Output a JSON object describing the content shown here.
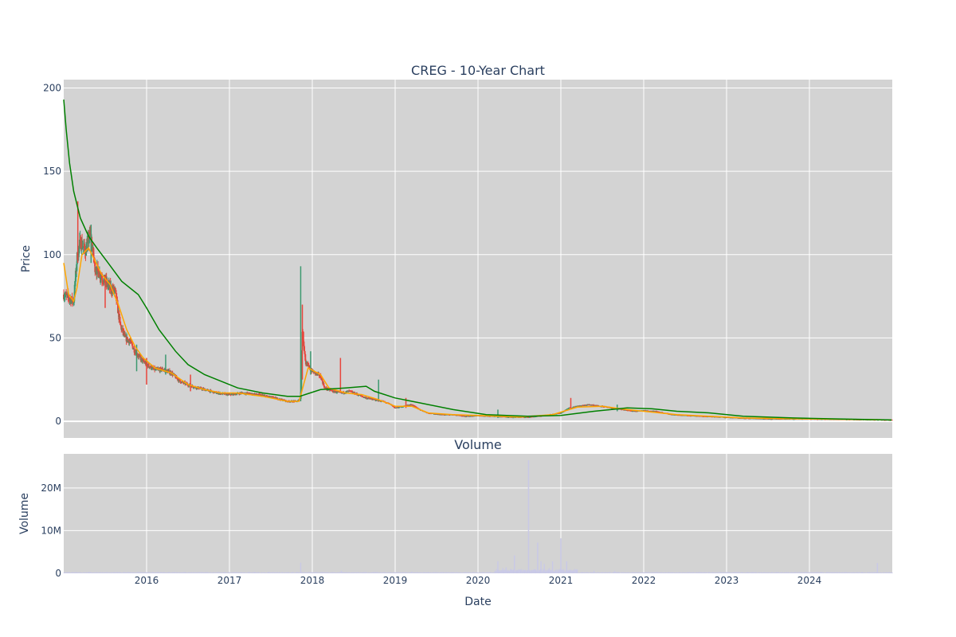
{
  "chart_data": {
    "type": "candlestick",
    "title": "CREG - 10-Year Chart",
    "colors": {
      "plot_bg": "#d3d3d3",
      "grid": "#ffffff",
      "up": "#3d9970",
      "down": "#e8453c",
      "ma_short": "#ffa500",
      "ma_long": "#008000",
      "volume": "#c9c9e6",
      "text": "#2a3f5f"
    },
    "x_ticks": [
      "2016",
      "2017",
      "2018",
      "2019",
      "2020",
      "2021",
      "2022",
      "2023",
      "2024"
    ],
    "x_range": [
      2015.0,
      2025.0
    ],
    "xlabel": "Date",
    "price": {
      "ylabel": "Price",
      "ylim": [
        -10,
        205
      ],
      "y_ticks": [
        0,
        50,
        100,
        150,
        200
      ],
      "y_tick_labels": [
        "0",
        "50",
        "100",
        "150",
        "200"
      ],
      "anchors": [
        [
          2015.0,
          76
        ],
        [
          2015.06,
          74
        ],
        [
          2015.12,
          72
        ],
        [
          2015.16,
          98
        ],
        [
          2015.2,
          108
        ],
        [
          2015.26,
          102
        ],
        [
          2015.32,
          112
        ],
        [
          2015.38,
          92
        ],
        [
          2015.44,
          88
        ],
        [
          2015.5,
          84
        ],
        [
          2015.56,
          80
        ],
        [
          2015.62,
          78
        ],
        [
          2015.68,
          58
        ],
        [
          2015.74,
          50
        ],
        [
          2015.8,
          48
        ],
        [
          2015.86,
          42
        ],
        [
          2015.92,
          38
        ],
        [
          2016.0,
          34
        ],
        [
          2016.1,
          31
        ],
        [
          2016.2,
          31
        ],
        [
          2016.3,
          29
        ],
        [
          2016.4,
          24
        ],
        [
          2016.55,
          21
        ],
        [
          2016.7,
          19
        ],
        [
          2016.85,
          17
        ],
        [
          2017.0,
          16
        ],
        [
          2017.15,
          17
        ],
        [
          2017.35,
          16
        ],
        [
          2017.55,
          14
        ],
        [
          2017.7,
          12
        ],
        [
          2017.82,
          12
        ],
        [
          2017.86,
          14
        ],
        [
          2017.88,
          55
        ],
        [
          2017.92,
          35
        ],
        [
          2018.0,
          30
        ],
        [
          2018.1,
          27
        ],
        [
          2018.15,
          20
        ],
        [
          2018.25,
          18
        ],
        [
          2018.35,
          17
        ],
        [
          2018.45,
          18
        ],
        [
          2018.55,
          16
        ],
        [
          2018.65,
          14
        ],
        [
          2018.75,
          13
        ],
        [
          2018.85,
          12
        ],
        [
          2018.95,
          10
        ],
        [
          2019.0,
          8
        ],
        [
          2019.1,
          9
        ],
        [
          2019.2,
          10
        ],
        [
          2019.3,
          7
        ],
        [
          2019.4,
          5
        ],
        [
          2019.55,
          4
        ],
        [
          2019.7,
          4
        ],
        [
          2019.85,
          3
        ],
        [
          2020.0,
          3.5
        ],
        [
          2020.2,
          3
        ],
        [
          2020.4,
          2.5
        ],
        [
          2020.6,
          2.5
        ],
        [
          2020.8,
          3.5
        ],
        [
          2021.0,
          5
        ],
        [
          2021.1,
          8
        ],
        [
          2021.2,
          9
        ],
        [
          2021.35,
          10
        ],
        [
          2021.5,
          9
        ],
        [
          2021.6,
          8
        ],
        [
          2021.75,
          7
        ],
        [
          2021.9,
          6
        ],
        [
          2022.0,
          6.5
        ],
        [
          2022.15,
          6
        ],
        [
          2022.35,
          4
        ],
        [
          2022.55,
          3.5
        ],
        [
          2022.75,
          3
        ],
        [
          2022.95,
          2.5
        ],
        [
          2023.2,
          2
        ],
        [
          2023.5,
          1.5
        ],
        [
          2023.8,
          1.5
        ],
        [
          2024.0,
          1.5
        ],
        [
          2024.3,
          1.3
        ],
        [
          2024.6,
          1.1
        ],
        [
          2024.99,
          0.8
        ]
      ],
      "spikes": [
        [
          2015.17,
          132,
          95
        ],
        [
          2015.33,
          118,
          95
        ],
        [
          2015.5,
          88,
          68
        ],
        [
          2015.88,
          46,
          30
        ],
        [
          2016.0,
          38,
          22
        ],
        [
          2016.23,
          40,
          28
        ],
        [
          2016.53,
          28,
          18
        ],
        [
          2017.86,
          93,
          12
        ],
        [
          2017.88,
          70,
          25
        ],
        [
          2017.98,
          42,
          28
        ],
        [
          2018.34,
          38,
          17
        ],
        [
          2018.8,
          25,
          12
        ],
        [
          2019.13,
          14,
          8
        ],
        [
          2020.24,
          7,
          2
        ],
        [
          2021.12,
          14,
          7
        ],
        [
          2021.68,
          10,
          6
        ]
      ],
      "ma_short": [
        [
          2015.0,
          95
        ],
        [
          2015.06,
          76
        ],
        [
          2015.12,
          72
        ],
        [
          2015.16,
          80
        ],
        [
          2015.22,
          100
        ],
        [
          2015.3,
          104
        ],
        [
          2015.38,
          96
        ],
        [
          2015.46,
          88
        ],
        [
          2015.56,
          82
        ],
        [
          2015.66,
          70
        ],
        [
          2015.76,
          55
        ],
        [
          2015.86,
          45
        ],
        [
          2015.96,
          38
        ],
        [
          2016.1,
          32
        ],
        [
          2016.3,
          29
        ],
        [
          2016.5,
          22
        ],
        [
          2016.7,
          19
        ],
        [
          2016.9,
          17
        ],
        [
          2017.1,
          17
        ],
        [
          2017.4,
          15
        ],
        [
          2017.7,
          12
        ],
        [
          2017.84,
          12
        ],
        [
          2017.95,
          32
        ],
        [
          2018.1,
          28
        ],
        [
          2018.2,
          20
        ],
        [
          2018.4,
          17
        ],
        [
          2018.6,
          16
        ],
        [
          2018.8,
          13
        ],
        [
          2019.0,
          9
        ],
        [
          2019.2,
          9
        ],
        [
          2019.4,
          5
        ],
        [
          2019.7,
          4
        ],
        [
          2020.0,
          3.5
        ],
        [
          2020.5,
          2.5
        ],
        [
          2020.9,
          4
        ],
        [
          2021.2,
          8.5
        ],
        [
          2021.5,
          9
        ],
        [
          2021.8,
          7
        ],
        [
          2022.0,
          6
        ],
        [
          2022.4,
          4
        ],
        [
          2022.8,
          3
        ],
        [
          2023.2,
          2
        ],
        [
          2023.8,
          1.5
        ],
        [
          2024.4,
          1.2
        ],
        [
          2024.99,
          0.8
        ]
      ],
      "ma_long": [
        [
          2015.0,
          193
        ],
        [
          2015.03,
          175
        ],
        [
          2015.07,
          155
        ],
        [
          2015.12,
          138
        ],
        [
          2015.2,
          122
        ],
        [
          2015.3,
          111
        ],
        [
          2015.4,
          104
        ],
        [
          2015.52,
          96
        ],
        [
          2015.7,
          84
        ],
        [
          2015.9,
          76
        ],
        [
          2016.0,
          68
        ],
        [
          2016.15,
          55
        ],
        [
          2016.35,
          42
        ],
        [
          2016.5,
          34
        ],
        [
          2016.7,
          28
        ],
        [
          2016.9,
          24
        ],
        [
          2017.1,
          20
        ],
        [
          2017.4,
          17
        ],
        [
          2017.7,
          15
        ],
        [
          2017.85,
          15
        ],
        [
          2018.1,
          19
        ],
        [
          2018.4,
          20
        ],
        [
          2018.65,
          21
        ],
        [
          2018.75,
          18
        ],
        [
          2019.0,
          14
        ],
        [
          2019.3,
          11
        ],
        [
          2019.7,
          7
        ],
        [
          2020.1,
          4
        ],
        [
          2020.6,
          3
        ],
        [
          2021.0,
          3.5
        ],
        [
          2021.4,
          6
        ],
        [
          2021.8,
          8
        ],
        [
          2022.1,
          7.5
        ],
        [
          2022.4,
          6
        ],
        [
          2022.8,
          5
        ],
        [
          2023.2,
          3
        ],
        [
          2023.8,
          2
        ],
        [
          2024.4,
          1.3
        ],
        [
          2024.99,
          0.8
        ]
      ]
    },
    "volume": {
      "title": "Volume",
      "ylabel": "Volume",
      "ylim": [
        0,
        28
      ],
      "y_ticks": [
        0,
        10,
        20
      ],
      "y_tick_labels": [
        "0",
        "10M",
        "20M"
      ],
      "spikes": [
        [
          2017.86,
          2.5
        ],
        [
          2018.35,
          0.6
        ],
        [
          2019.2,
          0.4
        ],
        [
          2020.24,
          2.8
        ],
        [
          2020.3,
          1.2
        ],
        [
          2020.34,
          1.4
        ],
        [
          2020.4,
          1.0
        ],
        [
          2020.44,
          4.2
        ],
        [
          2020.55,
          0.8
        ],
        [
          2020.61,
          26.5
        ],
        [
          2020.68,
          0.9
        ],
        [
          2020.72,
          7.2
        ],
        [
          2020.76,
          2.8
        ],
        [
          2020.8,
          2.2
        ],
        [
          2020.86,
          1.2
        ],
        [
          2020.9,
          2.8
        ],
        [
          2021.0,
          8.2
        ],
        [
          2021.07,
          2.8
        ],
        [
          2021.4,
          0.6
        ],
        [
          2021.65,
          0.5
        ],
        [
          2024.82,
          2.4
        ]
      ]
    }
  }
}
